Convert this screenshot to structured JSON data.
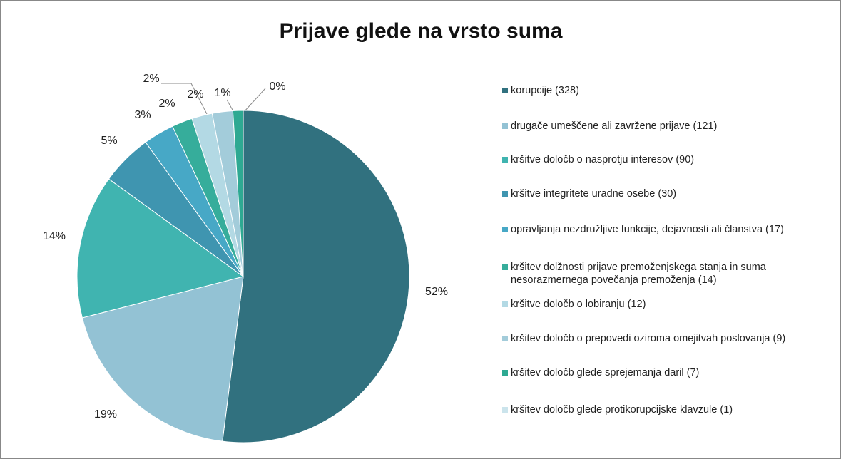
{
  "chart_data": {
    "type": "pie",
    "title": "Prijave glede na vrsto suma",
    "categories": [
      "korupcije (328)",
      "drugače umeščene ali zavržene prijave (121)",
      "kršitve določb o nasprotju interesov (90)",
      "kršitve integritete uradne osebe (30)",
      "opravljanja nezdružljive funkcije, dejavnosti ali članstva (17)",
      " kršitev dolžnosti prijave premoženjskega stanja in suma nesorazmernega povečanja premoženja (14)",
      "kršitve določb o lobiranju (12)",
      "kršitev določb o prepovedi oziroma omejitvah poslovanja (9)",
      "kršitev določb glede sprejemanja daril (7)",
      "kršitev določb glede protikorupcijske klavzule (1)"
    ],
    "values": [
      52,
      19,
      14,
      5,
      3,
      2,
      2,
      2,
      1,
      0
    ],
    "value_labels": [
      "52%",
      "19%",
      "14%",
      "5%",
      "3%",
      "2%",
      "2%",
      "2%",
      "1%",
      "0%"
    ],
    "colors": [
      "#31717f",
      "#93c2d4",
      "#40b4b0",
      "#3f95b0",
      "#47a8c6",
      "#36ad9b",
      "#b3d9e4",
      "#a3ccda",
      "#2ea992",
      "#cbe4ec"
    ],
    "legend": "right"
  }
}
